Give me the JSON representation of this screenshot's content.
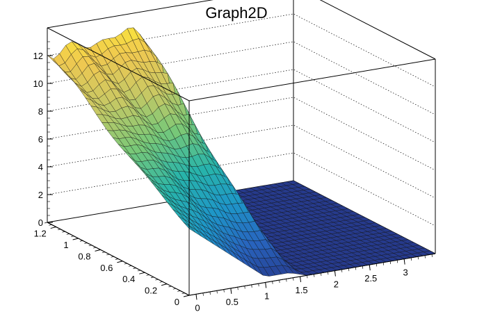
{
  "chart_data": {
    "type": "surface",
    "title": "Graph2D",
    "palette": "viridis-like (dark blue to yellow)",
    "x_ticks": [
      "0",
      "0.5",
      "1",
      "1.5",
      "2",
      "2.5",
      "3"
    ],
    "y_ticks": [
      "0",
      "0.2",
      "0.4",
      "0.6",
      "0.8",
      "1",
      "1.2"
    ],
    "z_ticks": [
      "0",
      "2",
      "4",
      "6",
      "8",
      "10",
      "12"
    ],
    "xlim": [
      -0.1,
      3.45
    ],
    "ylim": [
      0,
      1.28
    ],
    "zlim": [
      0,
      14
    ],
    "grid": true,
    "surface_description": "Plateau near z≈12 at high y, sloping down to ~0 at y≈0 for x<1.4; cliff near x≈1.4-1.6; flat z=0 region for x>1.6",
    "sample_profile": {
      "x_values": [
        -0.1,
        0.5,
        1.0,
        1.35,
        1.45,
        1.55,
        1.7,
        2.5,
        3.45
      ],
      "z_at_y_max": [
        12.5,
        12.6,
        12.3,
        12.0,
        9.0,
        3.0,
        0,
        0,
        0
      ],
      "z_at_y_min": [
        4.8,
        2.5,
        0.4,
        0.3,
        0.2,
        0.1,
        0,
        0,
        0
      ]
    }
  }
}
